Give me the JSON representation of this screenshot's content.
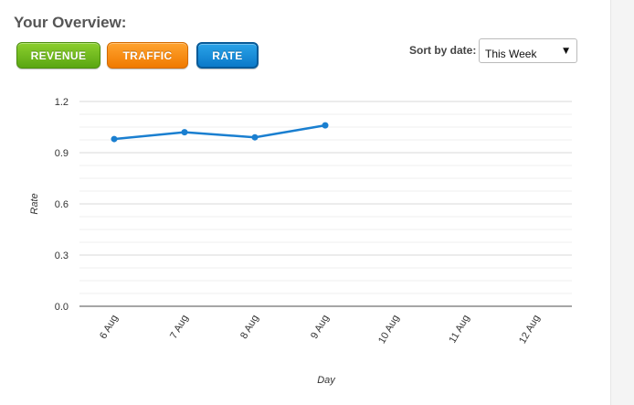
{
  "header": {
    "title": "Your Overview:"
  },
  "tabs": [
    {
      "label": "REVENUE",
      "color": "#6bb81a"
    },
    {
      "label": "TRAFFIC",
      "color": "#f58a0b"
    },
    {
      "label": "RATE",
      "color": "#1a8ad8",
      "active": true
    }
  ],
  "sort": {
    "label": "Sort by date:",
    "selected": "This Week",
    "arrow_icon": "triangle-down-icon"
  },
  "chart_data": {
    "type": "line",
    "xlabel": "Day",
    "ylabel": "Rate",
    "categories": [
      "6 Aug",
      "7 Aug",
      "8 Aug",
      "9 Aug",
      "10 Aug",
      "11 Aug",
      "12 Aug"
    ],
    "values": [
      0.98,
      1.02,
      0.99,
      1.06,
      null,
      null,
      null
    ],
    "ylim": [
      0,
      1.2
    ],
    "yticks": [
      "1.2",
      "0.9",
      "0.6",
      "0.3",
      "0.0"
    ],
    "grid": true,
    "line_color": "#1a7fd0"
  }
}
